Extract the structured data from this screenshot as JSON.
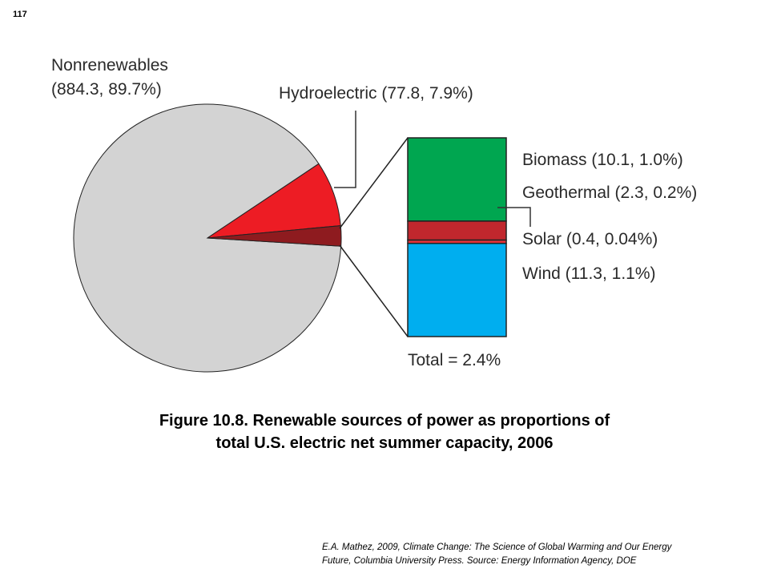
{
  "page_number": "117",
  "caption": {
    "line1": "Figure 10.8.  Renewable sources of power as proportions of",
    "line2": "total U.S. electric net summer capacity, 2006"
  },
  "citation": {
    "line1": "E.A. Mathez, 2009, Climate Change: The Science of Global Warming and Our Energy",
    "line2": "Future, Columbia University Press.  Source: Energy Information Agency, DOE"
  },
  "chart_data": {
    "type": "pie",
    "slices": [
      {
        "key": "nonrenewables",
        "label_line1": "Nonrenewables",
        "label_line2": "(884.3, 89.7%)",
        "value": 884.3,
        "percent": 89.7,
        "color": "#d3d3d3"
      },
      {
        "key": "hydro",
        "label": "Hydroelectric (77.8, 7.9%)",
        "value": 77.8,
        "percent": 7.9,
        "color": "#ed1c24"
      },
      {
        "key": "other_renewables",
        "value": 24.1,
        "percent": 2.4,
        "color": "#8e1b1f"
      }
    ],
    "breakdown": {
      "type": "stacked-bar",
      "total_label": "Total = 2.4%",
      "segments": [
        {
          "key": "biomass",
          "label": "Biomass (10.1, 1.0%)",
          "value": 10.1,
          "percent": 1.0,
          "color": "#00a650"
        },
        {
          "key": "geothermal",
          "label": "Geothermal (2.3, 0.2%)",
          "value": 2.3,
          "percent": 0.2,
          "color": "#c1272d"
        },
        {
          "key": "solar",
          "label": "Solar (0.4, 0.04%)",
          "value": 0.4,
          "percent": 0.04,
          "color": "#e8323a"
        },
        {
          "key": "wind",
          "label": "Wind (11.3, 1.1%)",
          "value": 11.3,
          "percent": 1.1,
          "color": "#00aeef"
        }
      ]
    }
  }
}
